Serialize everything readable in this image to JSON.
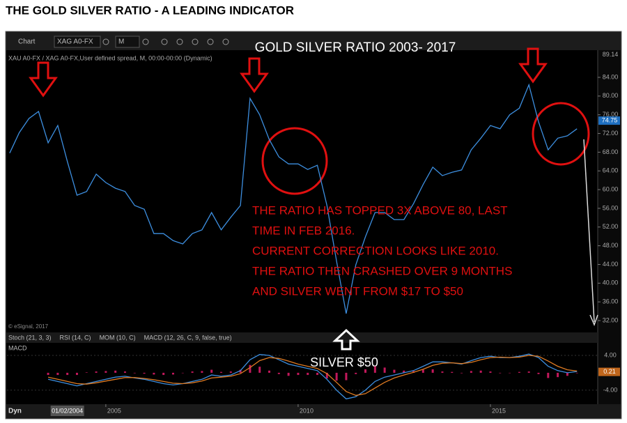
{
  "page_title": "THE GOLD SILVER RATIO - A LEADING INDICATOR",
  "toolbar": {
    "chart_tab": "Chart",
    "symbol": "XAG A0-FX",
    "interval": "M"
  },
  "tabs": [
    "Stoch (21, 3, 3)",
    "RSI (14, C)",
    "MOM (10, C)",
    "MACD (12, 26, C, 9, false, true)"
  ],
  "copyright": "© eSignal, 2017",
  "footer_label": "Dyn",
  "chart_data": [
    {
      "type": "line",
      "title": "GOLD SILVER RATIO 2003- 2017",
      "subtitle": "XAU A0-FX / XAG A0-FX,User defined spread, M, 00:00-00:00 (Dynamic)",
      "x": [
        2002.5,
        2002.75,
        2003.0,
        2003.25,
        2003.5,
        2003.75,
        2004.0,
        2004.25,
        2004.5,
        2004.75,
        2005.0,
        2005.25,
        2005.5,
        2005.75,
        2006.0,
        2006.25,
        2006.5,
        2006.75,
        2007.0,
        2007.25,
        2007.5,
        2007.75,
        2008.0,
        2008.25,
        2008.5,
        2008.75,
        2009.0,
        2009.25,
        2009.5,
        2009.75,
        2010.0,
        2010.25,
        2010.5,
        2010.75,
        2011.0,
        2011.25,
        2011.5,
        2011.75,
        2012.0,
        2012.25,
        2012.5,
        2012.75,
        2013.0,
        2013.25,
        2013.5,
        2013.75,
        2014.0,
        2014.25,
        2014.5,
        2014.75,
        2015.0,
        2015.25,
        2015.5,
        2015.75,
        2016.0,
        2016.25,
        2016.5,
        2016.75,
        2017.0,
        2017.25
      ],
      "values": [
        67.8,
        72.2,
        75.2,
        76.7,
        70.0,
        73.7,
        66.0,
        58.8,
        59.6,
        63.3,
        61.5,
        60.3,
        59.6,
        56.6,
        55.8,
        50.6,
        50.6,
        49.1,
        48.4,
        50.6,
        51.4,
        55.1,
        51.4,
        54.1,
        56.6,
        79.5,
        76.0,
        70.7,
        67.0,
        65.5,
        65.5,
        64.3,
        65.2,
        56.6,
        44.7,
        33.5,
        43.9,
        49.9,
        55.1,
        55.1,
        53.6,
        53.6,
        57.0,
        61.1,
        64.8,
        63.0,
        63.7,
        64.2,
        68.5,
        71.0,
        73.7,
        73.0,
        76.0,
        77.4,
        82.4,
        74.5,
        68.5,
        71.0,
        71.5,
        73.0
      ],
      "color": "#3d8fe0",
      "xlim": [
        2002.43,
        2017.79
      ],
      "xticks": [
        {
          "value": 2005,
          "label": "2005"
        },
        {
          "value": 2010,
          "label": "2010"
        },
        {
          "value": 2015,
          "label": "2015"
        }
      ],
      "x_cursor": {
        "value": 2004.0,
        "label": "01/02/2004"
      },
      "ylim": [
        29.8,
        89.14
      ],
      "yticks": [
        {
          "value": 32,
          "label": "32.00"
        },
        {
          "value": 36,
          "label": "36.00"
        },
        {
          "value": 40,
          "label": "40.00"
        },
        {
          "value": 44,
          "label": "44.00"
        },
        {
          "value": 48,
          "label": "48.00"
        },
        {
          "value": 52,
          "label": "52.00"
        },
        {
          "value": 56,
          "label": "56.00"
        },
        {
          "value": 60,
          "label": "60.00"
        },
        {
          "value": 64,
          "label": "64.00"
        },
        {
          "value": 68,
          "label": "68.00"
        },
        {
          "value": 72,
          "label": "72.00"
        },
        {
          "value": 76,
          "label": "76.00"
        },
        {
          "value": 80,
          "label": "80.00"
        },
        {
          "value": 84,
          "label": "84.00"
        }
      ],
      "last_value": 74.75,
      "annotations": {
        "note": [
          "THE RATIO HAS TOPPED 3X ABOVE 80, LAST",
          "TIME IN FEB 2016.",
          "CURRENT CORRECTION LOOKS LIKE 2010.",
          "THE RATIO THEN CRASHED OVER 9 MONTHS",
          "AND SILVER WENT FROM $17 TO $50"
        ],
        "silver": "SILVER $50"
      }
    },
    {
      "type": "macd",
      "title": "MACD",
      "macd": {
        "color": "#3d8fe0",
        "values": [
          null,
          null,
          null,
          null,
          -1.5,
          -2.0,
          -2.5,
          -3.0,
          -2.5,
          -2.0,
          -1.5,
          -1.0,
          -0.8,
          -1.2,
          -1.5,
          -2.0,
          -2.5,
          -2.8,
          -2.5,
          -2.0,
          -1.5,
          -0.5,
          -0.8,
          -0.5,
          0.5,
          3.0,
          4.2,
          4.0,
          3.0,
          2.0,
          1.5,
          1.0,
          0.5,
          -1.5,
          -4.0,
          -6.0,
          -5.5,
          -4.0,
          -2.0,
          -1.0,
          -0.5,
          0.0,
          0.5,
          1.5,
          2.5,
          2.5,
          2.3,
          2.0,
          2.8,
          3.5,
          3.8,
          3.5,
          3.5,
          3.8,
          4.3,
          3.5,
          1.5,
          0.5,
          0.0,
          0.3
        ]
      },
      "signal": {
        "color": "#e07b22",
        "values": [
          null,
          null,
          null,
          null,
          -1.0,
          -1.5,
          -2.0,
          -2.5,
          -2.6,
          -2.3,
          -1.9,
          -1.5,
          -1.1,
          -1.1,
          -1.3,
          -1.6,
          -2.0,
          -2.4,
          -2.5,
          -2.3,
          -1.9,
          -1.2,
          -1.0,
          -0.8,
          -0.2,
          1.2,
          2.8,
          3.5,
          3.3,
          2.7,
          2.0,
          1.5,
          1.0,
          -0.2,
          -2.2,
          -4.3,
          -5.2,
          -4.8,
          -3.5,
          -2.2,
          -1.2,
          -0.5,
          0.1,
          0.8,
          1.7,
          2.2,
          2.3,
          2.1,
          2.4,
          3.0,
          3.5,
          3.6,
          3.5,
          3.6,
          4.0,
          3.8,
          2.7,
          1.5,
          0.7,
          0.4
        ]
      },
      "histogram": {
        "color": "#c2185b",
        "values": [
          null,
          null,
          null,
          null,
          -0.5,
          -0.5,
          -0.5,
          -0.5,
          0.1,
          0.3,
          0.4,
          0.5,
          0.3,
          -0.1,
          -0.2,
          -0.4,
          -0.5,
          -0.4,
          0.0,
          0.3,
          0.4,
          0.7,
          0.2,
          0.3,
          0.7,
          1.8,
          1.4,
          0.5,
          -0.3,
          -0.7,
          -0.5,
          -0.5,
          -0.5,
          -1.3,
          -1.8,
          -1.7,
          -0.3,
          0.8,
          1.5,
          1.2,
          0.7,
          0.5,
          0.4,
          0.7,
          0.8,
          0.3,
          0.2,
          -0.1,
          0.4,
          0.5,
          0.3,
          -0.1,
          0.0,
          0.2,
          0.3,
          -0.3,
          -1.2,
          -1.0,
          -0.7,
          -0.1
        ]
      },
      "ylim": [
        -6.9,
        6.4
      ],
      "yticks": [
        {
          "value": 4,
          "label": "4.00"
        },
        {
          "value": -4,
          "label": "-4.00"
        }
      ],
      "last_value": 0.21
    }
  ]
}
